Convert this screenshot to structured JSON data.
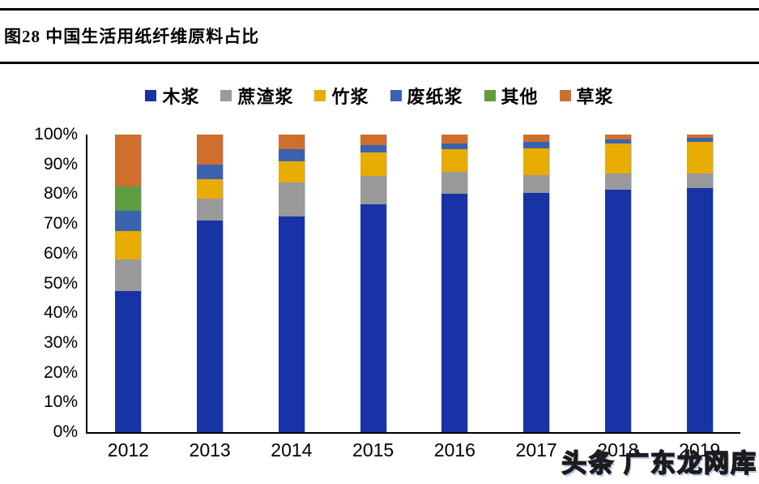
{
  "header": {
    "title": "图28 中国生活用纸纤维原料占比"
  },
  "watermark": {
    "text": "头条 广东龙网库"
  },
  "chart_data": {
    "type": "bar",
    "stacked": true,
    "title": "图28 中国生活用纸纤维原料占比",
    "categories": [
      "2012",
      "2013",
      "2014",
      "2015",
      "2016",
      "2017",
      "2018",
      "2019"
    ],
    "series": [
      {
        "name": "木浆",
        "color": "#1733A6",
        "values": [
          47.5,
          71,
          72.5,
          76.5,
          80,
          80.5,
          81.5,
          82
        ]
      },
      {
        "name": "蔗渣浆",
        "color": "#999999",
        "values": [
          10.5,
          7.5,
          11.5,
          9.5,
          7.5,
          6,
          5.5,
          5
        ]
      },
      {
        "name": "竹浆",
        "color": "#E8AC00",
        "values": [
          9.5,
          6.5,
          7,
          8,
          7.5,
          9,
          10,
          10.5
        ]
      },
      {
        "name": "废纸浆",
        "color": "#3A62AE",
        "values": [
          7,
          5,
          4,
          2.5,
          2,
          2,
          1.5,
          1.5
        ]
      },
      {
        "name": "其他",
        "color": "#5E9C3F",
        "values": [
          8,
          0,
          0,
          0,
          0,
          0,
          0,
          0
        ]
      },
      {
        "name": "草浆",
        "color": "#CE6F2D",
        "values": [
          17.5,
          10,
          5,
          3.5,
          3,
          2.5,
          1.5,
          1
        ]
      }
    ],
    "xlabel": "",
    "ylabel": "",
    "ylim": [
      0,
      100
    ],
    "ytick_labels": [
      "100%",
      "90%",
      "80%",
      "70%",
      "60%",
      "50%",
      "40%",
      "30%",
      "20%",
      "10%",
      "0%"
    ],
    "grid": false,
    "legend_position": "top"
  }
}
